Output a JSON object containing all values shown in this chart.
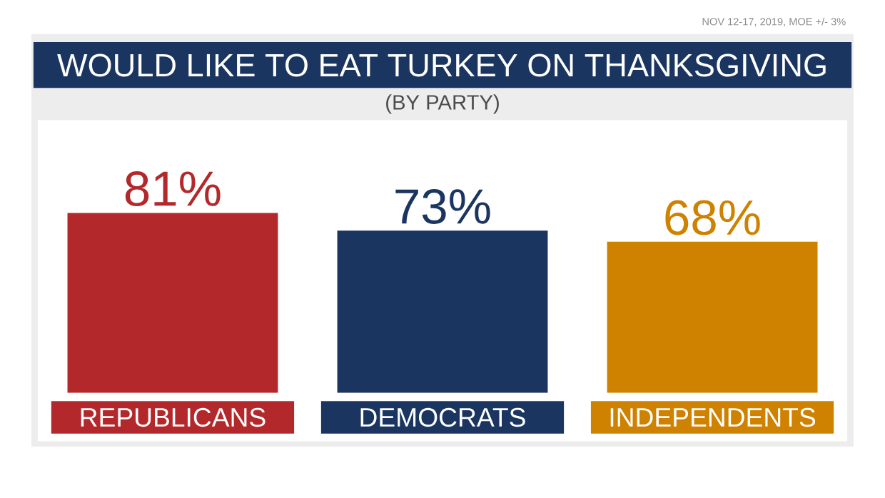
{
  "chart_data": {
    "type": "bar",
    "title": "WOULD LIKE TO EAT TURKEY ON THANKSGIVING",
    "subtitle": "(BY PARTY)",
    "annotations": [
      "NOV 12-17, 2019, MOE +/- 3%"
    ],
    "categories": [
      "REPUBLICANS",
      "DEMOCRATS",
      "INDEPENDENTS"
    ],
    "values": [
      81,
      73,
      68
    ],
    "value_labels": [
      "81%",
      "73%",
      "68%"
    ],
    "colors": [
      "#b3282b",
      "#1b3561",
      "#cf8100"
    ]
  }
}
